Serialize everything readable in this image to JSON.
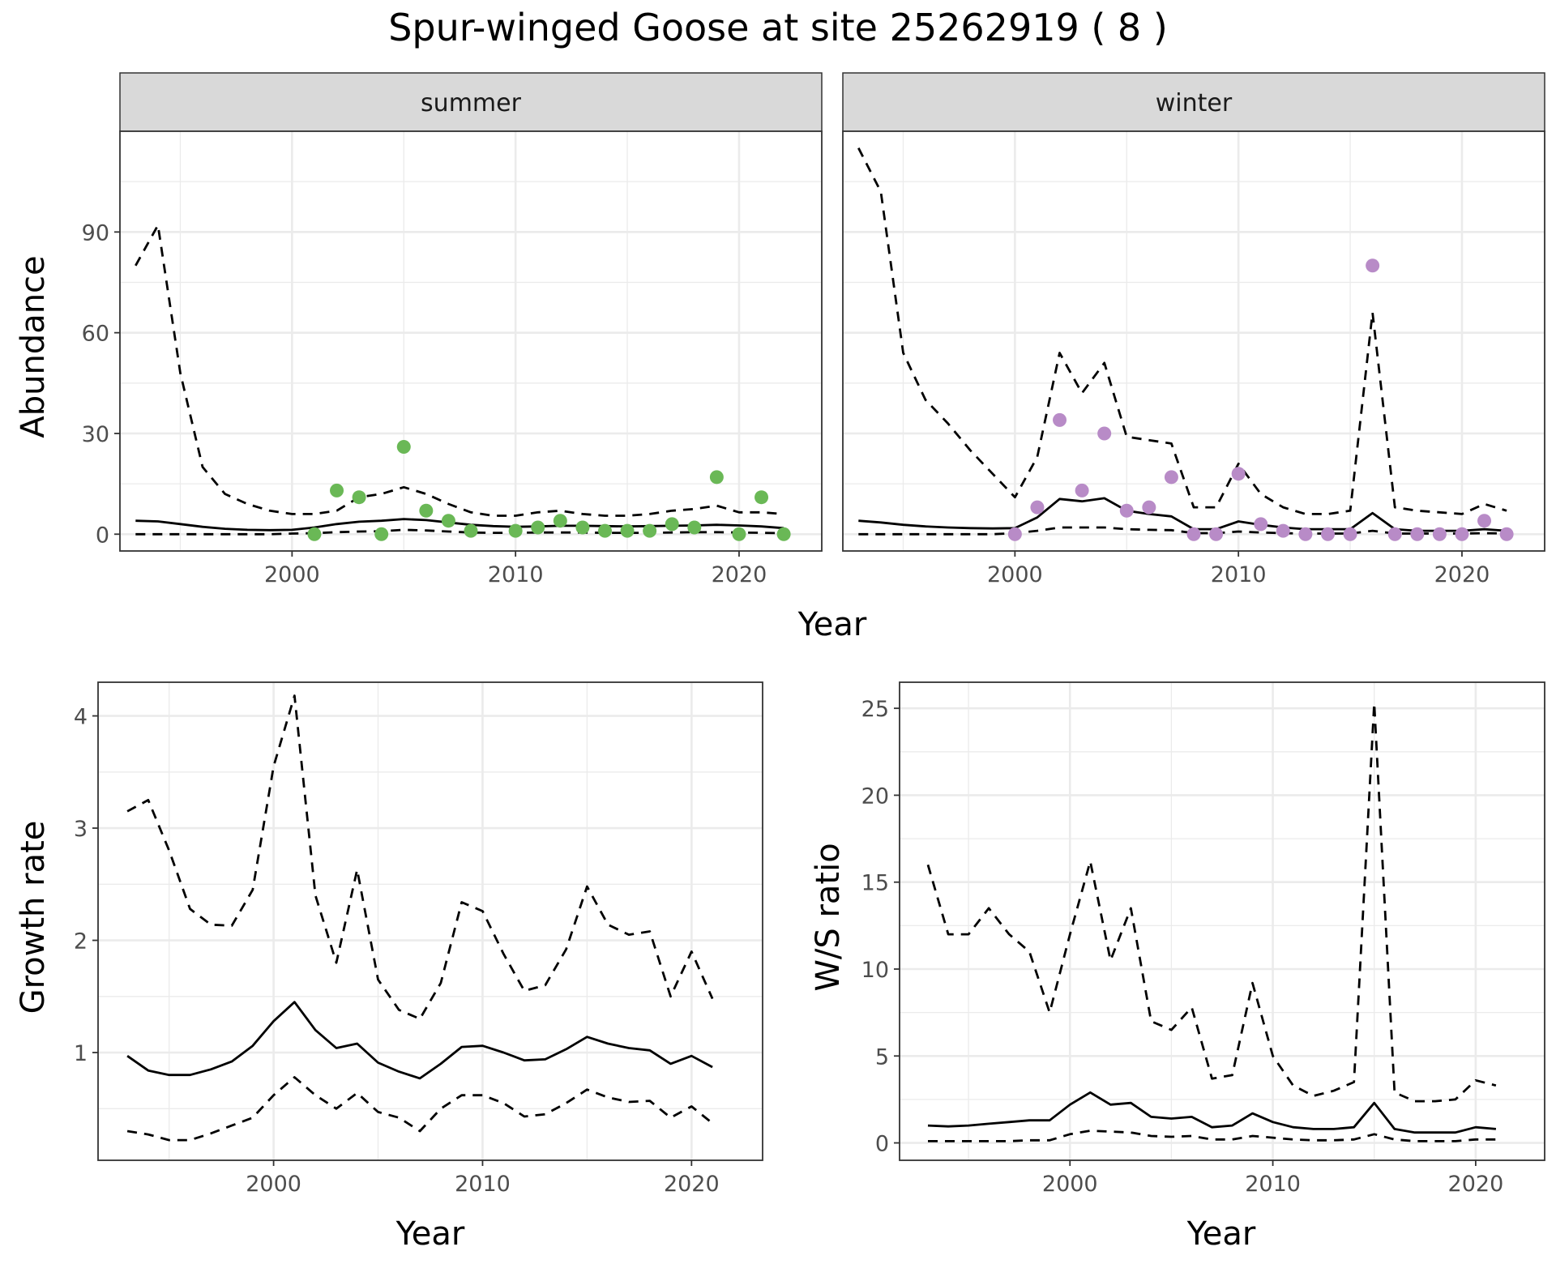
{
  "title": "Spur-winged Goose at site 25262919 ( 8 )",
  "colors": {
    "summer_points": "#6ab856",
    "winter_points": "#b88bc7",
    "line": "#000000",
    "strip_bg": "#d9d9d9",
    "grid": "#ebebeb"
  },
  "chart_data": [
    {
      "type": "line",
      "panel": "summer",
      "xlabel": "Year",
      "ylabel": "Abundance",
      "xlim": [
        1992.3,
        2023.7
      ],
      "ylim": [
        -5,
        120
      ],
      "xticks": [
        2000,
        2010,
        2020
      ],
      "yticks": [
        0,
        30,
        60,
        90
      ],
      "grid": true,
      "x": [
        1993,
        1994,
        1995,
        1996,
        1997,
        1998,
        1999,
        2000,
        2001,
        2002,
        2003,
        2004,
        2005,
        2006,
        2007,
        2008,
        2009,
        2010,
        2011,
        2012,
        2013,
        2014,
        2015,
        2016,
        2017,
        2018,
        2019,
        2020,
        2021,
        2022
      ],
      "series": [
        {
          "role": "estimate",
          "style": "solid",
          "values": [
            4,
            3.8,
            3,
            2.2,
            1.6,
            1.3,
            1.2,
            1.3,
            2,
            3,
            3.7,
            4,
            4.5,
            4.2,
            3.5,
            2.8,
            2.4,
            2.2,
            2.3,
            2.5,
            2.5,
            2.4,
            2.3,
            2.4,
            2.5,
            2.6,
            2.8,
            2.6,
            2.3,
            1.8
          ]
        },
        {
          "role": "upper",
          "style": "dashed",
          "values": [
            80,
            92,
            48,
            20,
            12,
            9,
            7,
            6,
            6,
            7,
            11,
            12,
            14,
            12,
            9,
            6.5,
            5.5,
            5.5,
            6.5,
            7,
            6,
            5.5,
            5.5,
            6,
            7,
            7.5,
            8.5,
            6.5,
            6.5,
            6
          ]
        },
        {
          "role": "lower",
          "style": "dashed",
          "values": [
            0,
            0,
            0,
            0,
            0,
            0,
            0,
            0.2,
            0.3,
            0.6,
            0.8,
            0.9,
            1.3,
            1.1,
            0.8,
            0.5,
            0.4,
            0.4,
            0.5,
            0.5,
            0.5,
            0.4,
            0.4,
            0.4,
            0.5,
            0.6,
            0.6,
            0.5,
            0.4,
            0.3
          ]
        }
      ],
      "points": {
        "x": [
          2001,
          2002,
          2003,
          2004,
          2005,
          2006,
          2007,
          2008,
          2010,
          2011,
          2012,
          2013,
          2014,
          2015,
          2016,
          2017,
          2018,
          2019,
          2020,
          2021,
          2022
        ],
        "y": [
          0,
          13,
          11,
          0,
          26,
          7,
          4,
          1,
          1,
          2,
          4,
          2,
          1,
          1,
          1,
          3,
          2,
          17,
          0,
          11,
          0
        ]
      }
    },
    {
      "type": "line",
      "panel": "winter",
      "xlabel": "Year",
      "ylabel": "Abundance",
      "xlim": [
        1992.3,
        2023.7
      ],
      "ylim": [
        -5,
        120
      ],
      "xticks": [
        2000,
        2010,
        2020
      ],
      "yticks": [
        0,
        30,
        60,
        90
      ],
      "grid": true,
      "x": [
        1993,
        1994,
        1995,
        1996,
        1997,
        1998,
        1999,
        2000,
        2001,
        2002,
        2003,
        2004,
        2005,
        2006,
        2007,
        2008,
        2009,
        2010,
        2011,
        2012,
        2013,
        2014,
        2015,
        2016,
        2017,
        2018,
        2019,
        2020,
        2021,
        2022
      ],
      "series": [
        {
          "role": "estimate",
          "style": "solid",
          "values": [
            4,
            3.5,
            2.8,
            2.3,
            2,
            1.8,
            1.7,
            1.8,
            5,
            10.5,
            9.8,
            10.7,
            7,
            6,
            5.3,
            1.5,
            1.5,
            3.8,
            2.8,
            2,
            1.5,
            1.5,
            1.5,
            6.3,
            1.5,
            1,
            1,
            1,
            1.5,
            1
          ]
        },
        {
          "role": "upper",
          "style": "dashed",
          "values": [
            115,
            102,
            54,
            40,
            33,
            25,
            18,
            11,
            23,
            54,
            42,
            51,
            29,
            28,
            27,
            8,
            8,
            21,
            12,
            8,
            6,
            6,
            7,
            66,
            8,
            7,
            6.5,
            6,
            9,
            7
          ]
        },
        {
          "role": "lower",
          "style": "dashed",
          "values": [
            0,
            0,
            0,
            0,
            0,
            0,
            0,
            0.3,
            1,
            2,
            2,
            2,
            1.5,
            1.3,
            1.2,
            0.3,
            0.3,
            0.8,
            0.5,
            0.3,
            0.2,
            0.2,
            0.2,
            1,
            0.2,
            0.2,
            0.2,
            0.2,
            0.3,
            0.2
          ]
        }
      ],
      "points": {
        "x": [
          2000,
          2001,
          2002,
          2003,
          2004,
          2005,
          2006,
          2007,
          2008,
          2009,
          2010,
          2011,
          2012,
          2013,
          2014,
          2015,
          2016,
          2017,
          2018,
          2019,
          2020,
          2021,
          2022
        ],
        "y": [
          0,
          8,
          34,
          13,
          30,
          7,
          8,
          17,
          0,
          0,
          18,
          3,
          1,
          0,
          0,
          0,
          80,
          0,
          0,
          0,
          0,
          4,
          0
        ]
      }
    },
    {
      "type": "line",
      "panel": "growth",
      "xlabel": "Year",
      "ylabel": "Growth rate",
      "xlim": [
        1991.6,
        2023.4
      ],
      "ylim": [
        0.04,
        4.3
      ],
      "xticks": [
        2000,
        2010,
        2020
      ],
      "yticks": [
        1,
        2,
        3,
        4
      ],
      "grid": true,
      "x": [
        1993,
        1994,
        1995,
        1996,
        1997,
        1998,
        1999,
        2000,
        2001,
        2002,
        2003,
        2004,
        2005,
        2006,
        2007,
        2008,
        2009,
        2010,
        2011,
        2012,
        2013,
        2014,
        2015,
        2016,
        2017,
        2018,
        2019,
        2020,
        2021
      ],
      "series": [
        {
          "role": "estimate",
          "style": "solid",
          "values": [
            0.97,
            0.84,
            0.8,
            0.8,
            0.85,
            0.92,
            1.06,
            1.28,
            1.45,
            1.2,
            1.04,
            1.08,
            0.91,
            0.83,
            0.77,
            0.9,
            1.05,
            1.06,
            1,
            0.93,
            0.94,
            1.03,
            1.14,
            1.08,
            1.04,
            1.02,
            0.9,
            0.97,
            0.87
          ]
        },
        {
          "role": "upper",
          "style": "dashed",
          "values": [
            3.15,
            3.25,
            2.8,
            2.28,
            2.14,
            2.13,
            2.45,
            3.55,
            4.18,
            2.4,
            1.8,
            2.63,
            1.65,
            1.38,
            1.3,
            1.62,
            2.34,
            2.26,
            1.88,
            1.55,
            1.6,
            1.92,
            2.48,
            2.14,
            2.05,
            2.08,
            1.5,
            1.9,
            1.48
          ]
        },
        {
          "role": "lower",
          "style": "dashed",
          "values": [
            0.3,
            0.27,
            0.22,
            0.22,
            0.28,
            0.35,
            0.42,
            0.62,
            0.78,
            0.62,
            0.5,
            0.64,
            0.47,
            0.42,
            0.3,
            0.5,
            0.62,
            0.62,
            0.55,
            0.43,
            0.45,
            0.55,
            0.67,
            0.6,
            0.56,
            0.57,
            0.42,
            0.52,
            0.37
          ]
        }
      ]
    },
    {
      "type": "line",
      "panel": "ratio",
      "xlabel": "Year",
      "ylabel": "W/S ratio",
      "xlim": [
        1991.6,
        2023.4
      ],
      "ylim": [
        -1,
        26.5
      ],
      "xticks": [
        2000,
        2010,
        2020
      ],
      "yticks": [
        0,
        5,
        10,
        15,
        20,
        25
      ],
      "grid": true,
      "x": [
        1993,
        1994,
        1995,
        1996,
        1997,
        1998,
        1999,
        2000,
        2001,
        2002,
        2003,
        2004,
        2005,
        2006,
        2007,
        2008,
        2009,
        2010,
        2011,
        2012,
        2013,
        2014,
        2015,
        2016,
        2017,
        2018,
        2019,
        2020,
        2021
      ],
      "series": [
        {
          "role": "estimate",
          "style": "solid",
          "values": [
            1,
            0.95,
            1,
            1.1,
            1.2,
            1.3,
            1.3,
            2.2,
            2.9,
            2.2,
            2.3,
            1.5,
            1.4,
            1.5,
            0.9,
            1,
            1.7,
            1.2,
            0.9,
            0.8,
            0.8,
            0.9,
            2.3,
            0.8,
            0.6,
            0.6,
            0.6,
            0.9,
            0.8
          ]
        },
        {
          "role": "upper",
          "style": "dashed",
          "values": [
            16,
            12,
            12,
            13.5,
            12,
            11,
            7.5,
            12,
            16.2,
            10.5,
            13.5,
            7,
            6.5,
            7.8,
            3.7,
            3.9,
            9.2,
            5,
            3.3,
            2.7,
            3,
            3.5,
            25.3,
            2.9,
            2.4,
            2.4,
            2.5,
            3.6,
            3.3
          ]
        },
        {
          "role": "lower",
          "style": "dashed",
          "values": [
            0.1,
            0.1,
            0.1,
            0.1,
            0.1,
            0.15,
            0.15,
            0.5,
            0.7,
            0.65,
            0.6,
            0.4,
            0.35,
            0.4,
            0.2,
            0.2,
            0.4,
            0.3,
            0.2,
            0.15,
            0.15,
            0.2,
            0.5,
            0.2,
            0.1,
            0.1,
            0.1,
            0.2,
            0.2
          ]
        }
      ]
    }
  ],
  "facets": {
    "left": "summer",
    "right": "winter"
  },
  "labels": {
    "top_y": "Abundance",
    "top_x": "Year",
    "bl_y": "Growth rate",
    "bl_x": "Year",
    "br_y": "W/S ratio",
    "br_x": "Year"
  }
}
